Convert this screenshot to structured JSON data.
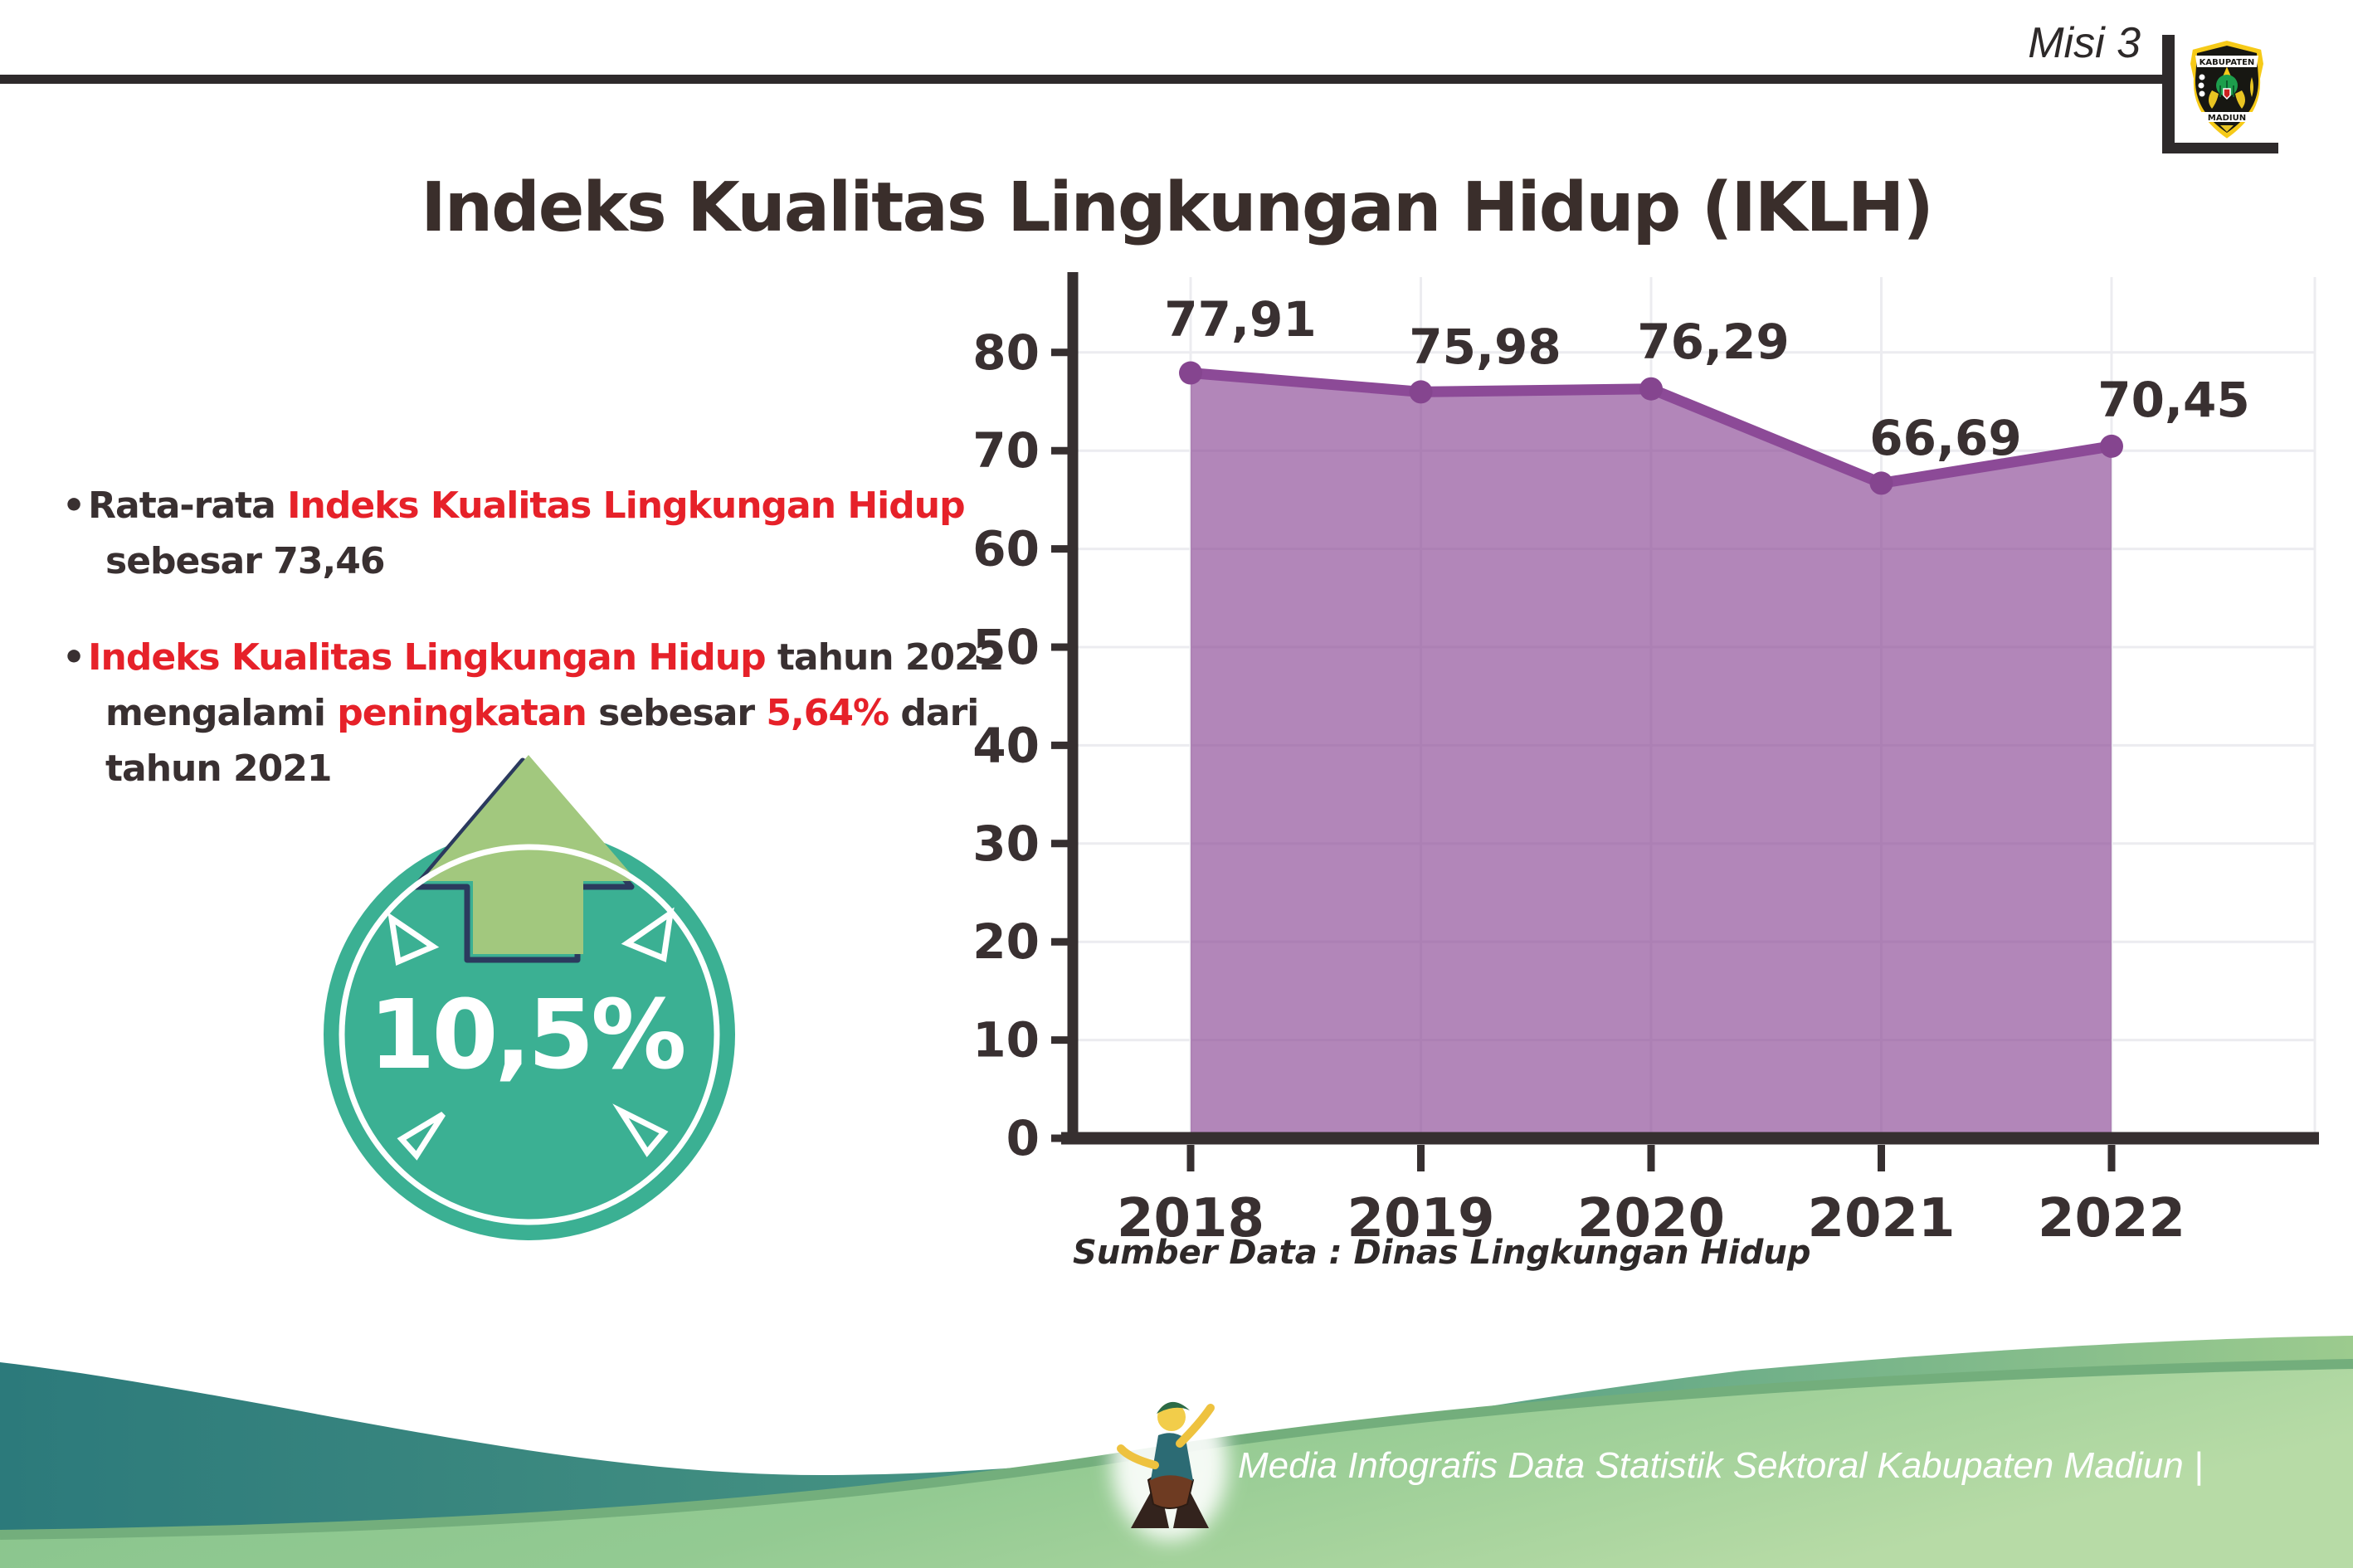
{
  "header": {
    "misi_label": "Misi 3",
    "title": "Indeks Kualitas Lingkungan Hidup (IKLH)"
  },
  "logo": {
    "top_text": "KABUPATEN",
    "bottom_text": "MADIUN"
  },
  "bullets": [
    {
      "lines": [
        [
          {
            "t": "Rata-rata ",
            "red": false
          },
          {
            "t": "Indeks Kualitas Lingkungan Hidup",
            "red": true
          }
        ],
        [
          {
            "t": "sebesar 73,46",
            "red": false
          }
        ]
      ]
    },
    {
      "lines": [
        [
          {
            "t": "Indeks Kualitas Lingkungan Hidup",
            "red": true
          },
          {
            "t": " tahun 2022",
            "red": false
          }
        ],
        [
          {
            "t": "mengalami ",
            "red": false
          },
          {
            "t": "peningkatan",
            "red": true
          },
          {
            "t": " sebesar ",
            "red": false
          },
          {
            "t": "5,64%",
            "red": true
          },
          {
            "t": " dari",
            "red": false
          }
        ],
        [
          {
            "t": "tahun 2021",
            "red": false
          }
        ]
      ]
    }
  ],
  "badge": {
    "value": "10,5%"
  },
  "chart_data": {
    "type": "area",
    "categories": [
      "2018",
      "2019",
      "2020",
      "2021",
      "2022"
    ],
    "values": [
      77.91,
      75.98,
      76.29,
      66.69,
      70.45
    ],
    "value_labels": [
      "77,91",
      "75,98",
      "76,29",
      "66,69",
      "70,45"
    ],
    "ylim": [
      0,
      80
    ],
    "ytick_step": 10,
    "grid": true,
    "legend": "none",
    "xlabel": "",
    "ylabel": "",
    "source": "Sumber Data : Dinas Lingkungan Hidup"
  },
  "footer": {
    "text": "Media Infografis Data Statistik Sektoral Kabupaten Madiun |"
  },
  "colors": {
    "red_text": "#e62129",
    "dark_text": "#393031",
    "title": "#3a2e2b",
    "rule": "#2e2a2b",
    "chart_line": "#8c4a97",
    "chart_fill": "rgba(140,74,151,0.67)",
    "chart_dot": "#85458f",
    "chart_axis": "#362f30",
    "chart_grid": "#ececf0",
    "chart_label": "#393031",
    "badge_teal": "#3bb093",
    "badge_ring": "#ffffff",
    "badge_arrow": "#a2c87e",
    "badge_arrow_outline": "#2b3a5e",
    "footer_teal_start": "#2c7a7b",
    "footer_teal_end": "#9ccb8e",
    "footer_dome_start": "#84c28b",
    "footer_dome_end": "#b7dba6",
    "footer_rim": "#73ae7c",
    "footer_text": "#ffffff"
  }
}
